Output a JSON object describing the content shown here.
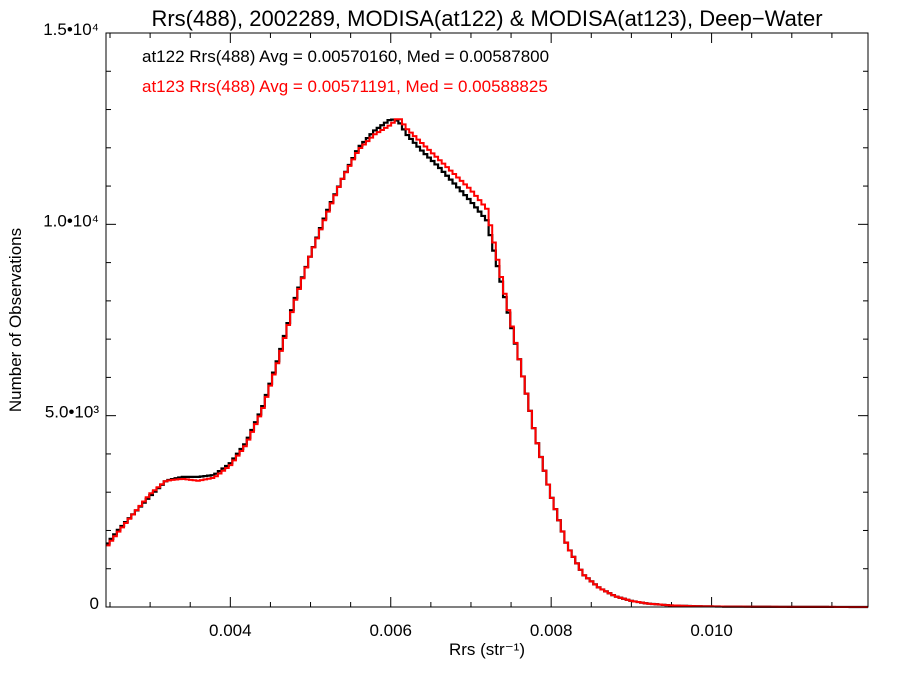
{
  "chart_data": {
    "type": "line",
    "title": "Rrs(488), 2002289, MODISA(at122) & MODISA(at123), Deep−Water",
    "xlabel": "Rrs (str⁻¹)",
    "ylabel": "Number of Observations",
    "xlim": [
      0.00245,
      0.01195
    ],
    "ylim": [
      0,
      15000
    ],
    "x_ticks": [
      {
        "value": 0.004,
        "label": "0.004"
      },
      {
        "value": 0.006,
        "label": "0.006"
      },
      {
        "value": 0.008,
        "label": "0.008"
      },
      {
        "value": 0.01,
        "label": "0.010"
      }
    ],
    "y_ticks": [
      {
        "value": 0,
        "label": "0"
      },
      {
        "value": 5000,
        "label": "5.0•10³"
      },
      {
        "value": 10000,
        "label": "1.0•10⁴"
      },
      {
        "value": 15000,
        "label": "1.5•10⁴"
      }
    ],
    "step_style": "histogram",
    "grid": false,
    "annotations": [
      {
        "text": "at122 Rrs(488) Avg = 0.00570160, Med = 0.00587800",
        "color": "#000000"
      },
      {
        "text": "at123 Rrs(488) Avg = 0.00571191, Med = 0.00588825",
        "color": "#ff0000"
      }
    ],
    "series": [
      {
        "color": "#000000",
        "x": [
          0.00245,
          0.0026,
          0.0028,
          0.003,
          0.0032,
          0.0034,
          0.0036,
          0.0038,
          0.004,
          0.0042,
          0.0044,
          0.0046,
          0.0048,
          0.005,
          0.0052,
          0.0054,
          0.0056,
          0.0058,
          0.006,
          0.0061,
          0.0062,
          0.0064,
          0.0066,
          0.0068,
          0.007,
          0.0072,
          0.0074,
          0.0076,
          0.0078,
          0.008,
          0.0082,
          0.0084,
          0.0086,
          0.0088,
          0.009,
          0.0092,
          0.0095,
          0.0098,
          0.0102,
          0.0108,
          0.01195
        ],
        "y": [
          1600,
          2000,
          2450,
          2900,
          3300,
          3400,
          3400,
          3450,
          3750,
          4300,
          5200,
          6500,
          8000,
          9200,
          10300,
          11200,
          12000,
          12450,
          12750,
          12700,
          12350,
          11900,
          11500,
          11050,
          10600,
          10100,
          8300,
          6500,
          4500,
          2900,
          1600,
          850,
          500,
          280,
          160,
          90,
          40,
          20,
          10,
          5,
          0
        ]
      },
      {
        "color": "#ff0000",
        "x": [
          0.00245,
          0.0026,
          0.0028,
          0.003,
          0.0032,
          0.0034,
          0.0036,
          0.0038,
          0.004,
          0.0042,
          0.0044,
          0.0046,
          0.0048,
          0.005,
          0.0052,
          0.0054,
          0.0056,
          0.0058,
          0.006,
          0.0061,
          0.0062,
          0.0064,
          0.0066,
          0.0068,
          0.007,
          0.0072,
          0.0074,
          0.0076,
          0.0078,
          0.008,
          0.0082,
          0.0084,
          0.0086,
          0.0088,
          0.009,
          0.0092,
          0.0095,
          0.0098,
          0.0102,
          0.0108,
          0.01195
        ],
        "y": [
          1550,
          1950,
          2450,
          2950,
          3300,
          3350,
          3300,
          3380,
          3700,
          4250,
          5150,
          6450,
          7950,
          9200,
          10250,
          11200,
          11950,
          12350,
          12600,
          12800,
          12500,
          12100,
          11700,
          11300,
          10900,
          10400,
          8400,
          6500,
          4500,
          2900,
          1600,
          850,
          500,
          280,
          160,
          90,
          40,
          20,
          10,
          5,
          0
        ]
      }
    ]
  }
}
